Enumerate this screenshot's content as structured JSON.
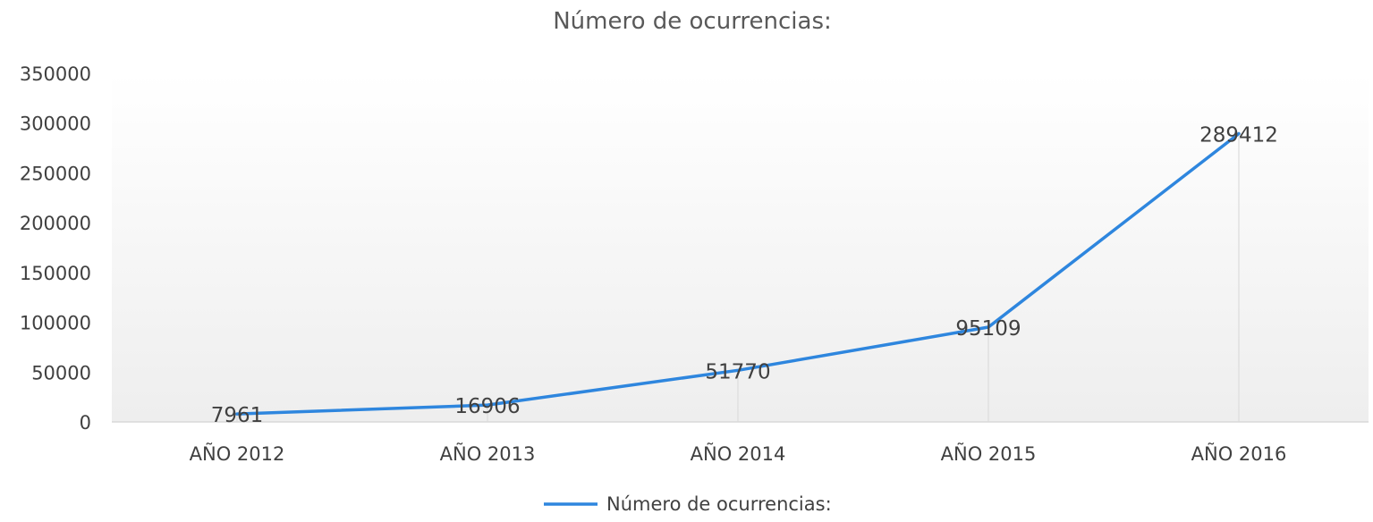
{
  "chart_data": {
    "type": "line",
    "title": "Número de ocurrencias:",
    "xlabel": "",
    "ylabel": "",
    "categories": [
      "AÑO 2012",
      "AÑO 2013",
      "AÑO 2014",
      "AÑO 2015",
      "AÑO 2016"
    ],
    "series": [
      {
        "name": "Número de ocurrencias:",
        "values": [
          7961,
          16906,
          51770,
          95109,
          289412
        ],
        "data_labels": [
          "7961",
          "16906",
          "51770",
          "95109",
          "289412"
        ],
        "color": "#2E86DE"
      }
    ],
    "ylim": [
      0,
      350000
    ],
    "yticks": [
      0,
      50000,
      100000,
      150000,
      200000,
      250000,
      300000,
      350000
    ],
    "ytick_labels": [
      "0",
      "50000",
      "100000",
      "150000",
      "200000",
      "250000",
      "300000",
      "350000"
    ],
    "grid": false,
    "drop_lines": true,
    "legend_position": "bottom"
  }
}
